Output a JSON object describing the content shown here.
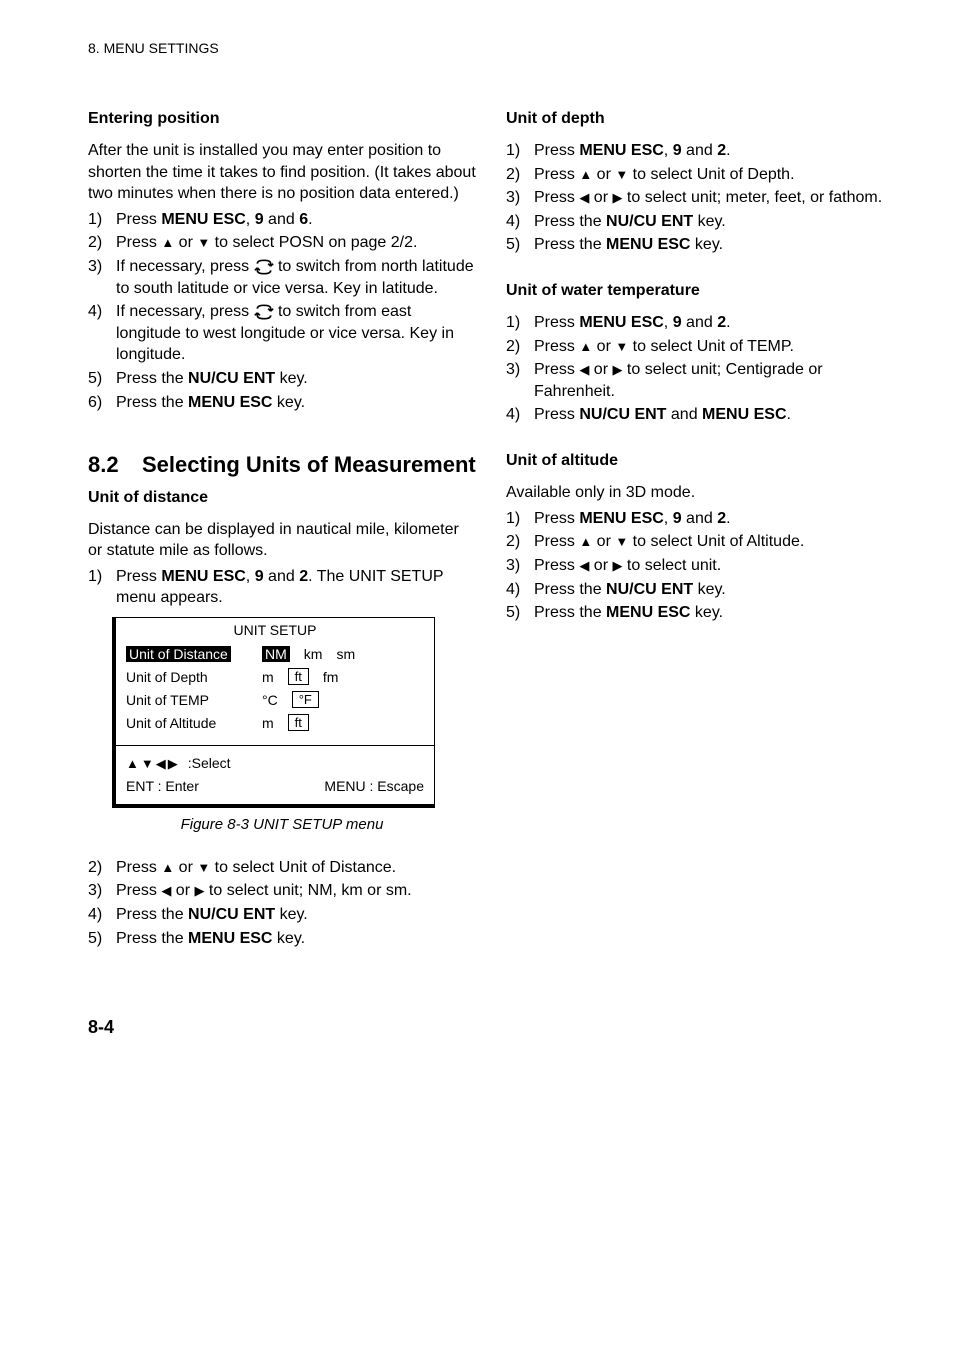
{
  "page_header": "8. MENU SETTINGS",
  "page_number": "8-4",
  "left": {
    "entering_position": {
      "title": "Entering position",
      "intro": "After the unit is installed you may enter position to shorten the time it takes to find position. (It takes about two minutes when there is no position data entered.)",
      "steps": [
        {
          "n": "1)",
          "pre": "Press ",
          "b1": "MENU ESC",
          "mid1": ", ",
          "b2": "9",
          "mid2": " and ",
          "b3": "6",
          "post": "."
        },
        {
          "n": "2)",
          "text_before": "Press ",
          "text_after": " to select POSN on page 2/2.",
          "arrows": "updown"
        },
        {
          "n": "3)",
          "text_before": "If necessary, press ",
          "text_after": " to switch from north latitude to south latitude or vice versa. Key in latitude.",
          "icon": "swap"
        },
        {
          "n": "4)",
          "text_before": "If necessary, press ",
          "text_after": " to switch from east longitude to west longitude or vice versa. Key in longitude.",
          "icon": "swap"
        },
        {
          "n": "5)",
          "pre": "Press the ",
          "b1": "NU/CU ENT",
          "post": " key."
        },
        {
          "n": "6)",
          "pre": "Press the ",
          "b1": "MENU ESC",
          "post": " key."
        }
      ]
    },
    "section": {
      "num": "8.2",
      "title": "Selecting Units of Measurement"
    },
    "unit_distance": {
      "title": "Unit of distance",
      "intro": "Distance can be displayed in nautical mile, kilometer or statute mile as follows.",
      "step1": {
        "n": "1)",
        "pre": "Press ",
        "b1": "MENU ESC",
        "mid1": ", ",
        "b2": "9",
        "mid2": " and ",
        "b3": "2",
        "post": ". The UNIT SETUP menu appears."
      },
      "menu": {
        "title": "UNIT SETUP",
        "rows": [
          {
            "label": "Unit of Distance",
            "label_sel": true,
            "opts": [
              {
                "t": "NM",
                "sel": true
              },
              {
                "t": "km"
              },
              {
                "t": "sm"
              }
            ]
          },
          {
            "label": "Unit of Depth",
            "opts": [
              {
                "t": "m"
              },
              {
                "t": "ft",
                "box": true
              },
              {
                "t": "fm"
              }
            ]
          },
          {
            "label": "Unit of TEMP",
            "opts": [
              {
                "t": "°C",
                "deg": true
              },
              {
                "t": "°F",
                "box": true,
                "deg": true
              }
            ]
          },
          {
            "label": "Unit of Altitude",
            "opts": [
              {
                "t": "m"
              },
              {
                "t": "ft",
                "box": true
              }
            ]
          }
        ],
        "select_label": ":Select",
        "ent": "ENT : Enter",
        "esc": "MENU : Escape"
      },
      "caption": "Figure 8-3 UNIT SETUP menu",
      "steps_after": [
        {
          "n": "2)",
          "text_before": "Press ",
          "text_after": " to select Unit of Distance.",
          "arrows": "updown"
        },
        {
          "n": "3)",
          "text_before": "Press ",
          "text_after": " to select unit; NM, km or sm.",
          "arrows": "leftright"
        },
        {
          "n": "4)",
          "pre": "Press the ",
          "b1": "NU/CU ENT",
          "post": " key."
        },
        {
          "n": "5)",
          "pre": "Press the ",
          "b1": "MENU ESC",
          "post": " key."
        }
      ]
    }
  },
  "right": {
    "unit_depth": {
      "title": "Unit of depth",
      "steps": [
        {
          "n": "1)",
          "pre": "Press ",
          "b1": "MENU ESC",
          "mid1": ", ",
          "b2": "9",
          "mid2": " and ",
          "b3": "2",
          "post": "."
        },
        {
          "n": "2)",
          "text_before": "Press ",
          "text_after": " to select Unit of Depth.",
          "arrows": "updown"
        },
        {
          "n": "3)",
          "text_before": "Press ",
          "text_after": " to select unit; meter, feet, or fathom.",
          "arrows": "leftright"
        },
        {
          "n": "4)",
          "pre": "Press the ",
          "b1": "NU/CU ENT",
          "post": " key."
        },
        {
          "n": "5)",
          "pre": "Press the ",
          "b1": "MENU ESC",
          "post": " key."
        }
      ]
    },
    "unit_temp": {
      "title": "Unit of water temperature",
      "steps": [
        {
          "n": "1)",
          "pre": "Press ",
          "b1": "MENU ESC",
          "mid1": ", ",
          "b2": "9",
          "mid2": " and ",
          "b3": "2",
          "post": "."
        },
        {
          "n": "2)",
          "text_before": "Press ",
          "text_after": " to select Unit of TEMP.",
          "arrows": "updown"
        },
        {
          "n": "3)",
          "text_before": "Press ",
          "text_after": " to select unit; Centigrade or Fahrenheit.",
          "arrows": "leftright"
        },
        {
          "n": "4)",
          "pre": "Press ",
          "b1": "NU/CU ENT",
          "mid1": " and ",
          "b2": "MENU ESC",
          "post": "."
        }
      ]
    },
    "unit_alt": {
      "title": "Unit of altitude",
      "intro": "Available only in 3D mode.",
      "steps": [
        {
          "n": "1)",
          "pre": "Press ",
          "b1": "MENU ESC",
          "mid1": ", ",
          "b2": "9",
          "mid2": " and ",
          "b3": "2",
          "post": "."
        },
        {
          "n": "2)",
          "text_before": "Press ",
          "text_after": " to select Unit of Altitude.",
          "arrows": "updown"
        },
        {
          "n": "3)",
          "text_before": "Press ",
          "text_after": " to select unit.",
          "arrows": "leftright"
        },
        {
          "n": "4)",
          "pre": "Press the ",
          "b1": "NU/CU ENT",
          "post": " key."
        },
        {
          "n": "5)",
          "pre": "Press the ",
          "b1": "MENU ESC",
          "post": " key."
        }
      ]
    }
  }
}
